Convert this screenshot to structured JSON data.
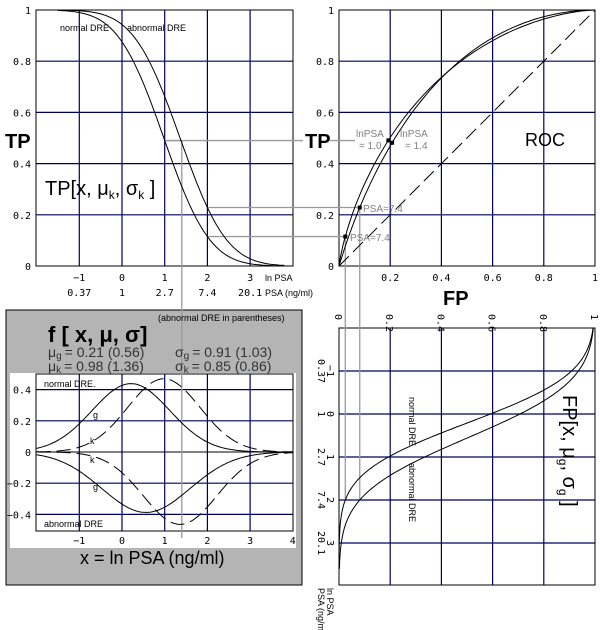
{
  "colors": {
    "grid": "#000060",
    "panel": "#b4b4b4",
    "connector": "#9a9a9a"
  },
  "chart_data": [
    {
      "type": "line",
      "id": "tp",
      "ylabel": "TP",
      "title_main": "TP[x, μ",
      "title_sub1": "k",
      "title_mid": ", σ",
      "title_sub2": "k",
      "title_end": " ]",
      "xlim": [
        -2,
        4
      ],
      "ylim": [
        0,
        1
      ],
      "grid": true,
      "x_ticks": [
        "−1",
        "0",
        "1",
        "2",
        "3"
      ],
      "x_tick_values": [
        -1,
        0,
        1,
        2,
        3
      ],
      "x_ticks2": [
        "0.37",
        "1",
        "2.7",
        "7.4",
        "20.1"
      ],
      "xlabel1": "ln PSA",
      "xlabel2": "PSA (ng/ml)",
      "y_ticks": [
        "0",
        "0.2",
        "0.4",
        "0.6",
        "0.8",
        "1"
      ],
      "y_tick_values": [
        0,
        0.2,
        0.4,
        0.6,
        0.8,
        1
      ],
      "series": [
        {
          "name": "normal DRE",
          "mu": 0.98,
          "sigma": 0.85
        },
        {
          "name": "abnormal DRE",
          "mu": 1.36,
          "sigma": 0.86
        }
      ]
    },
    {
      "type": "line",
      "id": "roc",
      "title": "ROC",
      "xlabel": "FP",
      "ylabel": "TP",
      "xlim": [
        0,
        1
      ],
      "ylim": [
        0,
        1
      ],
      "grid": true,
      "x_ticks": [
        "0.2",
        "0.4",
        "0.6",
        "0.8",
        "1"
      ],
      "x_tick_values": [
        0.2,
        0.4,
        0.6,
        0.8,
        1
      ],
      "y_ticks": [
        "0",
        "0.2",
        "0.4",
        "0.6",
        "0.8",
        "1"
      ],
      "y_tick_values": [
        0,
        0.2,
        0.4,
        0.6,
        0.8,
        1
      ],
      "diagonal": "dashed",
      "annotations": [
        {
          "l1": "lnPSA",
          "l2": "= 1.0",
          "lnpsa": 1.0,
          "group": "normal"
        },
        {
          "l1": "lnPSA",
          "l2": "= 1.4",
          "lnpsa": 1.4,
          "group": "abnormal"
        },
        {
          "l1": "PSA=7.4",
          "lnpsa": 2.0,
          "group": "abnormal"
        },
        {
          "l1": "PSA=7.4",
          "lnpsa": 2.0,
          "group": "normal"
        }
      ]
    },
    {
      "type": "line",
      "id": "fp",
      "orientation": "rotated 90°",
      "title_main": "FP[x, μ",
      "title_sub1": "g",
      "title_mid": ", σ",
      "title_sub2": "g",
      "title_end": " ]",
      "xlim": [
        0,
        1
      ],
      "ylim": [
        -2,
        4
      ],
      "grid": true,
      "fp_ticks": [
        "0",
        "0.2",
        "0.4",
        "0.6",
        "0.8",
        "1"
      ],
      "fp_tick_values": [
        0,
        0.2,
        0.4,
        0.6,
        0.8,
        1
      ],
      "ln_ticks": [
        "−1",
        "0",
        "1",
        "2",
        "3"
      ],
      "ln_tick_values": [
        -1,
        0,
        1,
        2,
        3
      ],
      "psa_ticks": [
        "0.37",
        "1",
        "2.7",
        "7.4",
        "20.1"
      ],
      "xlabel1": "ln PSA",
      "xlabel2": "PSA (ng/ml)",
      "series": [
        {
          "name": "normal DRE",
          "mu": 0.21,
          "sigma": 0.91
        },
        {
          "name": "abnormal DRE",
          "mu": 0.56,
          "sigma": 1.03
        }
      ]
    },
    {
      "type": "line",
      "id": "density",
      "xlabel": "x = ln PSA (ng/ml)",
      "xlim": [
        -2,
        4
      ],
      "ylim": [
        -0.5,
        0.5
      ],
      "grid": true,
      "x_ticks": [
        "−1",
        "0",
        "1",
        "2",
        "3",
        "4"
      ],
      "x_tick_values": [
        -1,
        0,
        1,
        2,
        3,
        4
      ],
      "y_ticks": [
        "−0.4",
        "−0.2",
        "0",
        "0.2",
        "0.4"
      ],
      "y_tick_values": [
        -0.4,
        -0.2,
        0,
        0.2,
        0.4
      ],
      "title": "f [ x, μ, σ]",
      "note": "(abnormal DRE in parentheses)",
      "params": {
        "mu_g": "= 0.21 (0.56)",
        "sigma_g": "= 0.91 (1.03)",
        "mu_k": "= 0.98 (1.36)",
        "sigma_k": "= 0.85 (0.86)"
      },
      "top_label": "normal DRE.",
      "bottom_label": "abnormal DRE",
      "series": [
        {
          "name": "g",
          "group": "normal DRE",
          "mu": 0.21,
          "sigma": 0.91,
          "sign": 1,
          "style": "solid"
        },
        {
          "name": "k",
          "group": "normal DRE",
          "mu": 0.98,
          "sigma": 0.85,
          "sign": 1,
          "style": "dashed"
        },
        {
          "name": "g",
          "group": "abnormal DRE",
          "mu": 0.56,
          "sigma": 1.03,
          "sign": -1,
          "style": "solid"
        },
        {
          "name": "k",
          "group": "abnormal DRE",
          "mu": 1.36,
          "sigma": 0.86,
          "sign": -1,
          "style": "dashed"
        }
      ]
    }
  ]
}
